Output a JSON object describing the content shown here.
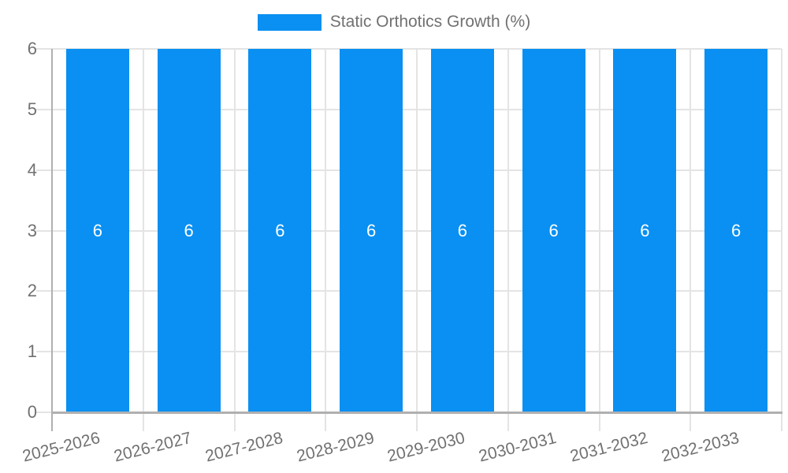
{
  "chart_data": {
    "type": "bar",
    "title": "Static Orthotics Growth (%)",
    "categories": [
      "2025-2026",
      "2026-2027",
      "2027-2028",
      "2028-2029",
      "2029-2030",
      "2030-2031",
      "2031-2032",
      "2032-2033"
    ],
    "series": [
      {
        "name": "Static Orthotics Growth (%)",
        "values": [
          6,
          6,
          6,
          6,
          6,
          6,
          6,
          6
        ],
        "color": "#0990f2"
      }
    ],
    "bar_labels": [
      "6",
      "6",
      "6",
      "6",
      "6",
      "6",
      "6",
      "6"
    ],
    "xlabel": "",
    "ylabel": "",
    "ylim": [
      0,
      6
    ],
    "yticks": [
      0,
      1,
      2,
      3,
      4,
      5,
      6
    ],
    "ytick_labels": [
      "0",
      "1",
      "2",
      "3",
      "4",
      "5",
      "6"
    ],
    "grid": "on",
    "legend_position": "top-center"
  },
  "colors": {
    "bar": "#0990f2",
    "axis_line": "#b0b0b0",
    "gridline": "#e4e4e4",
    "label_text": "#717171",
    "bar_label_text": "#ffffff",
    "background": "#ffffff"
  }
}
